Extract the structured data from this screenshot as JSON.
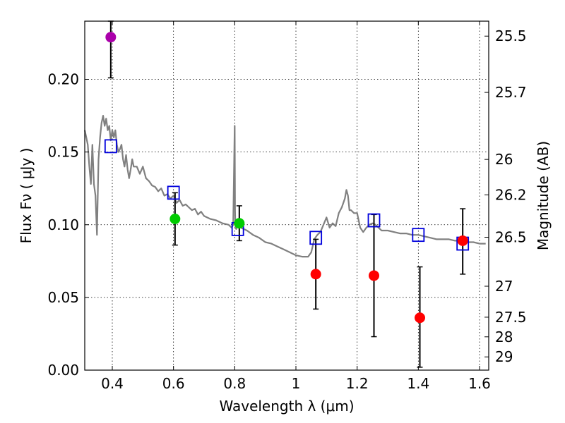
{
  "chart_data": {
    "type": "scatter",
    "title": "",
    "xlabel": "Wavelength  λ (μm)",
    "ylabel": "Flux  Fν  ( μJy )",
    "ylabel_right": "Magnitude (AB)",
    "xlim": [
      0.31,
      1.63
    ],
    "ylim": [
      0.0,
      0.24
    ],
    "grid": true,
    "x_ticks": [
      0.4,
      0.6,
      0.8,
      1.0,
      1.2,
      1.4,
      1.6
    ],
    "x_tick_labels": [
      "0.4",
      "0.6",
      "0.8",
      "1",
      "1.2",
      "1.4",
      "1.6"
    ],
    "y_ticks": [
      0.0,
      0.05,
      0.1,
      0.15,
      0.2
    ],
    "y_tick_labels": [
      "0.00",
      "0.05",
      "0.10",
      "0.15",
      "0.20"
    ],
    "right_ticks": [
      {
        "label": "25.5",
        "flux": 0.2297
      },
      {
        "label": "25.7",
        "flux": 0.191
      },
      {
        "label": "26",
        "flux": 0.1449
      },
      {
        "label": "26.2",
        "flux": 0.1205
      },
      {
        "label": "26.5",
        "flux": 0.0914
      },
      {
        "label": "27",
        "flux": 0.0577
      },
      {
        "label": "27.5",
        "flux": 0.0364
      },
      {
        "label": "28",
        "flux": 0.0229
      },
      {
        "label": "29",
        "flux": 0.0091
      }
    ],
    "observed": [
      {
        "x": 0.395,
        "y": 0.229,
        "yerr_low": 0.201,
        "yerr_high": 0.24,
        "color": "#aa00aa"
      },
      {
        "x": 0.605,
        "y": 0.104,
        "yerr_low": 0.086,
        "yerr_high": 0.122,
        "color": "#00cc00"
      },
      {
        "x": 0.815,
        "y": 0.101,
        "yerr_low": 0.089,
        "yerr_high": 0.113,
        "color": "#00cc00"
      },
      {
        "x": 1.065,
        "y": 0.066,
        "yerr_low": 0.042,
        "yerr_high": 0.09,
        "color": "#ff0000"
      },
      {
        "x": 1.255,
        "y": 0.065,
        "yerr_low": 0.023,
        "yerr_high": 0.107,
        "color": "#ff0000"
      },
      {
        "x": 1.405,
        "y": 0.036,
        "yerr_low": 0.002,
        "yerr_high": 0.071,
        "color": "#ff0000"
      },
      {
        "x": 1.545,
        "y": 0.089,
        "yerr_low": 0.066,
        "yerr_high": 0.111,
        "color": "#ff0000"
      }
    ],
    "model_photometry": [
      {
        "x": 0.395,
        "y": 0.154
      },
      {
        "x": 0.6,
        "y": 0.122
      },
      {
        "x": 0.81,
        "y": 0.097
      },
      {
        "x": 1.065,
        "y": 0.091
      },
      {
        "x": 1.255,
        "y": 0.103
      },
      {
        "x": 1.4,
        "y": 0.093
      },
      {
        "x": 1.545,
        "y": 0.087
      }
    ],
    "sed_model": {
      "color": "#808080",
      "x": [
        0.31,
        0.315,
        0.32,
        0.325,
        0.33,
        0.335,
        0.34,
        0.345,
        0.35,
        0.355,
        0.36,
        0.365,
        0.37,
        0.375,
        0.38,
        0.385,
        0.39,
        0.395,
        0.4,
        0.405,
        0.41,
        0.415,
        0.42,
        0.425,
        0.43,
        0.435,
        0.44,
        0.445,
        0.45,
        0.455,
        0.46,
        0.465,
        0.47,
        0.48,
        0.49,
        0.5,
        0.51,
        0.52,
        0.53,
        0.54,
        0.55,
        0.56,
        0.57,
        0.58,
        0.59,
        0.6,
        0.61,
        0.62,
        0.63,
        0.64,
        0.65,
        0.66,
        0.67,
        0.68,
        0.69,
        0.7,
        0.72,
        0.74,
        0.76,
        0.78,
        0.79,
        0.795,
        0.8,
        0.801,
        0.802,
        0.803,
        0.805,
        0.81,
        0.82,
        0.84,
        0.86,
        0.88,
        0.9,
        0.92,
        0.94,
        0.96,
        0.98,
        1.0,
        1.02,
        1.04,
        1.05,
        1.06,
        1.07,
        1.08,
        1.09,
        1.1,
        1.11,
        1.12,
        1.13,
        1.14,
        1.15,
        1.16,
        1.165,
        1.17,
        1.175,
        1.18,
        1.19,
        1.2,
        1.21,
        1.22,
        1.23,
        1.24,
        1.25,
        1.26,
        1.27,
        1.28,
        1.3,
        1.32,
        1.34,
        1.36,
        1.38,
        1.4,
        1.42,
        1.44,
        1.46,
        1.48,
        1.5,
        1.52,
        1.54,
        1.56,
        1.58,
        1.6,
        1.62
      ],
      "y": [
        0.165,
        0.16,
        0.155,
        0.14,
        0.128,
        0.155,
        0.128,
        0.12,
        0.093,
        0.145,
        0.16,
        0.17,
        0.175,
        0.168,
        0.173,
        0.165,
        0.168,
        0.158,
        0.165,
        0.16,
        0.165,
        0.155,
        0.15,
        0.152,
        0.155,
        0.145,
        0.14,
        0.148,
        0.138,
        0.132,
        0.138,
        0.145,
        0.14,
        0.14,
        0.135,
        0.14,
        0.132,
        0.13,
        0.127,
        0.126,
        0.123,
        0.125,
        0.12,
        0.121,
        0.118,
        0.12,
        0.115,
        0.117,
        0.113,
        0.114,
        0.112,
        0.11,
        0.111,
        0.107,
        0.109,
        0.106,
        0.104,
        0.103,
        0.101,
        0.1,
        0.098,
        0.1,
        0.168,
        0.11,
        0.1,
        0.098,
        0.097,
        0.1,
        0.098,
        0.096,
        0.093,
        0.091,
        0.088,
        0.087,
        0.085,
        0.083,
        0.081,
        0.079,
        0.078,
        0.078,
        0.081,
        0.09,
        0.093,
        0.095,
        0.1,
        0.105,
        0.098,
        0.101,
        0.099,
        0.108,
        0.112,
        0.118,
        0.124,
        0.12,
        0.11,
        0.11,
        0.108,
        0.108,
        0.098,
        0.095,
        0.098,
        0.1,
        0.101,
        0.1,
        0.098,
        0.096,
        0.096,
        0.095,
        0.094,
        0.094,
        0.093,
        0.093,
        0.092,
        0.091,
        0.09,
        0.09,
        0.09,
        0.089,
        0.089,
        0.088,
        0.088,
        0.087,
        0.087
      ]
    }
  }
}
